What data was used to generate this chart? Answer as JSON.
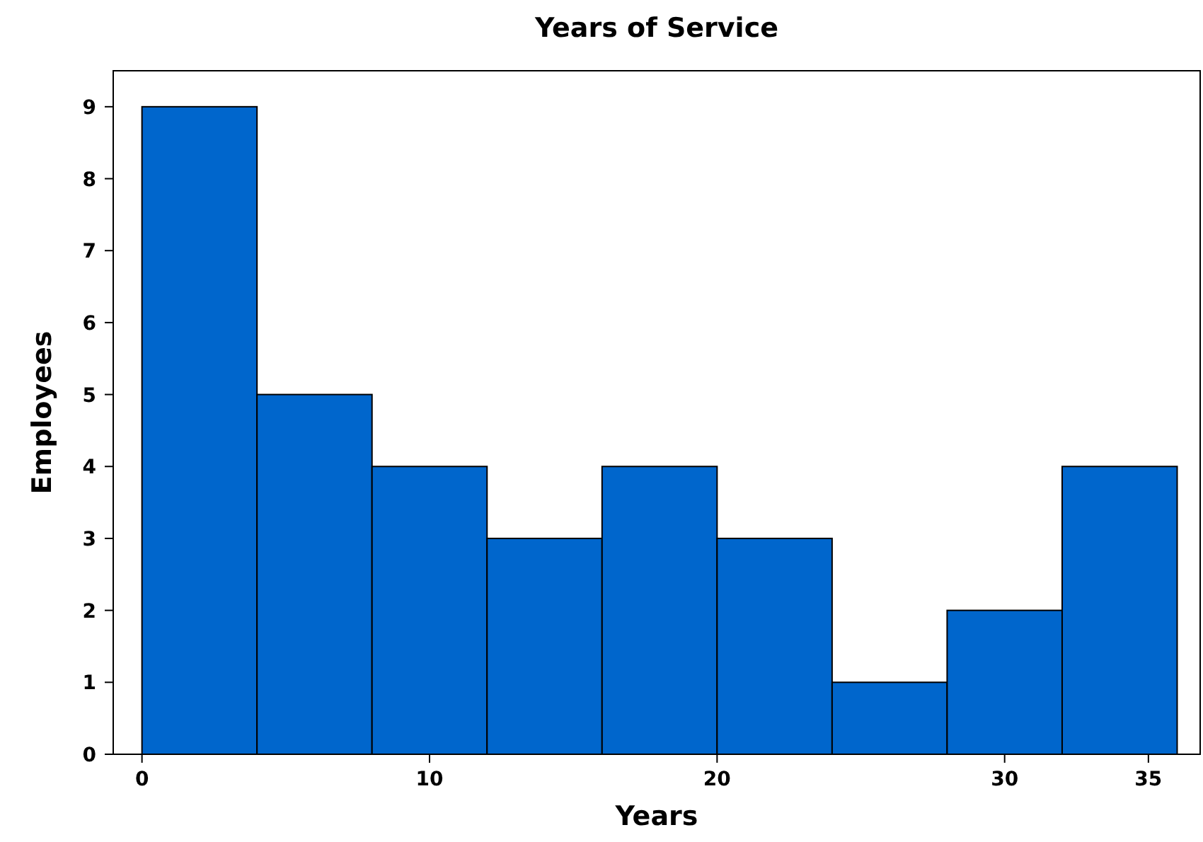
{
  "chart_data": {
    "type": "histogram",
    "title": "Years of Service",
    "xlabel": "Years",
    "ylabel": "Employees",
    "bins": [
      0,
      4,
      8,
      12,
      16,
      20,
      24,
      28,
      32,
      36
    ],
    "values": [
      9,
      5,
      4,
      3,
      4,
      3,
      1,
      2,
      4
    ],
    "color": "#0066cc",
    "xlim": [
      -1,
      36.8
    ],
    "xticks": [
      0,
      10,
      20,
      30,
      35
    ],
    "ylim": [
      0,
      9.5
    ],
    "yticks": [
      0,
      1,
      2,
      3,
      4,
      5,
      6,
      7,
      8,
      9
    ],
    "grid": false
  }
}
